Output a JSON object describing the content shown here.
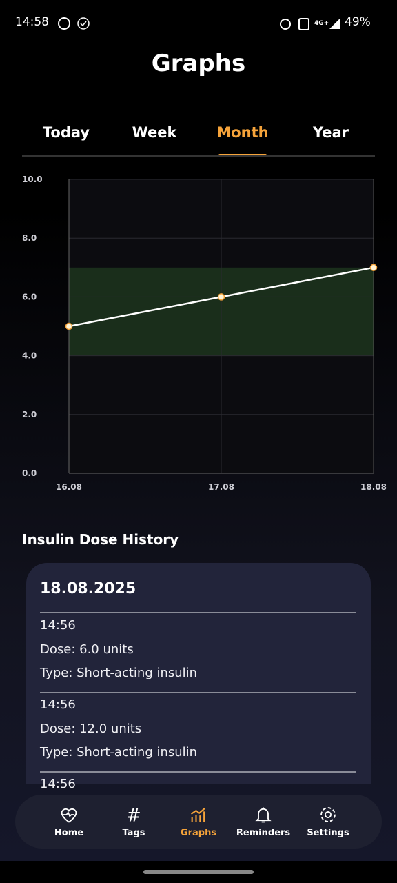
{
  "status_bar": {
    "time": "14:58",
    "network": "4G+",
    "battery": "49%"
  },
  "header": {
    "title": "Graphs"
  },
  "tabs": {
    "items": [
      "Today",
      "Week",
      "Month",
      "Year"
    ],
    "active": 2
  },
  "chart_data": {
    "type": "line",
    "categories": [
      "16.08",
      "17.08",
      "18.08"
    ],
    "series": [
      {
        "values": [
          5,
          6,
          7
        ],
        "color": "#ffffff"
      }
    ],
    "ylim": [
      0,
      10
    ],
    "yticks": [
      {
        "value": 0,
        "label": "0.0"
      },
      {
        "value": 2,
        "label": "2.0"
      },
      {
        "value": 4,
        "label": "4.0"
      },
      {
        "value": 6,
        "label": "6.0"
      },
      {
        "value": 8,
        "label": "8.0"
      },
      {
        "value": 10,
        "label": "10.0"
      }
    ],
    "target_band": [
      4,
      7
    ],
    "band_color": "#1f3a1f",
    "grid": true
  },
  "history": {
    "title": "Insulin Dose History",
    "date": "18.08.2025",
    "entries": [
      {
        "time": "14:56",
        "dose": "Dose: 6.0 units",
        "type": "Type: Short-acting insulin"
      },
      {
        "time": "14:56",
        "dose": "Dose: 12.0 units",
        "type": "Type: Short-acting insulin"
      },
      {
        "time": "14:56"
      }
    ]
  },
  "nav": {
    "items": [
      "Home",
      "Tags",
      "Graphs",
      "Reminders",
      "Settings"
    ],
    "active": 2
  }
}
